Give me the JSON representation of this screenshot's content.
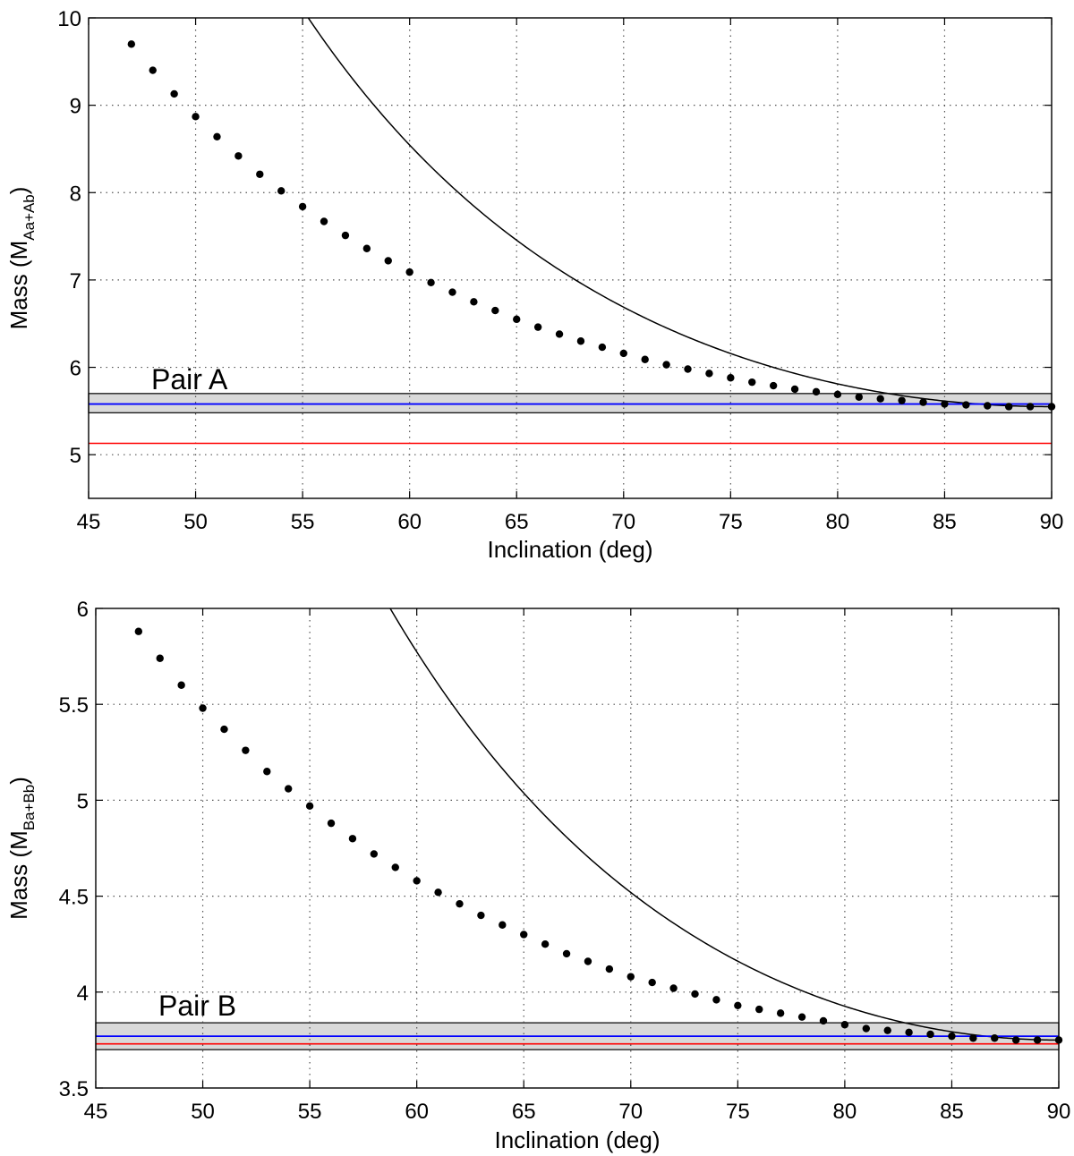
{
  "chart_data": [
    {
      "type": "line",
      "xlabel": "Inclination (deg)",
      "ylabel_prefix": "Mass (M",
      "ylabel_sub": "Aa+Ab",
      "ylabel_suffix": ")",
      "annotation": "Pair A",
      "xlim": [
        45,
        90
      ],
      "ylim": [
        4.5,
        10
      ],
      "xticks": [
        "45",
        "50",
        "55",
        "60",
        "65",
        "70",
        "75",
        "80",
        "85",
        "90"
      ],
      "yticks": [
        "5",
        "6",
        "7",
        "8",
        "9",
        "10"
      ],
      "ytick_values": [
        5,
        6,
        7,
        8,
        9,
        10
      ],
      "grid": true,
      "colors": {
        "curve": "#000000",
        "blue": "#0000ff",
        "red": "#ff0000",
        "band": "#d9d9d9"
      },
      "band": [
        5.48,
        5.7
      ],
      "blue_line": 5.58,
      "red_line": 5.13,
      "curve_model": {
        "a": 5.55,
        "exponent": 3
      },
      "x": [
        47,
        48,
        49,
        50,
        51,
        52,
        53,
        54,
        55,
        56,
        57,
        58,
        59,
        60,
        61,
        62,
        63,
        64,
        65,
        66,
        67,
        68,
        69,
        70,
        71,
        72,
        73,
        74,
        75,
        76,
        77,
        78,
        79,
        80,
        81,
        82,
        83,
        84,
        85,
        86,
        87,
        88,
        89,
        90
      ],
      "y": [
        9.7,
        9.4,
        9.13,
        8.87,
        8.64,
        8.42,
        8.21,
        8.02,
        7.84,
        7.67,
        7.51,
        7.36,
        7.22,
        7.09,
        6.97,
        6.86,
        6.75,
        6.65,
        6.55,
        6.46,
        6.38,
        6.3,
        6.23,
        6.16,
        6.09,
        6.03,
        5.98,
        5.93,
        5.88,
        5.83,
        5.79,
        5.75,
        5.72,
        5.69,
        5.66,
        5.64,
        5.62,
        5.6,
        5.58,
        5.57,
        5.56,
        5.55,
        5.55,
        5.55
      ]
    },
    {
      "type": "line",
      "xlabel": "Inclination (deg)",
      "ylabel_prefix": "Mass (M",
      "ylabel_sub": "Ba+Bb",
      "ylabel_suffix": ")",
      "annotation": "Pair B",
      "xlim": [
        45,
        90
      ],
      "ylim": [
        3.5,
        6
      ],
      "xticks": [
        "45",
        "50",
        "55",
        "60",
        "65",
        "70",
        "75",
        "80",
        "85",
        "90"
      ],
      "yticks": [
        "3.5",
        "4",
        "4.5",
        "5",
        "5.5",
        "6"
      ],
      "ytick_values": [
        3.5,
        4,
        4.5,
        5,
        5.5,
        6
      ],
      "grid": true,
      "colors": {
        "curve": "#000000",
        "blue": "#0000ff",
        "red": "#ff0000",
        "band": "#d9d9d9"
      },
      "band": [
        3.7,
        3.84
      ],
      "blue_line": 3.77,
      "red_line": 3.73,
      "curve_model": {
        "a": 3.75,
        "exponent": 3
      },
      "x": [
        47,
        48,
        49,
        50,
        51,
        52,
        53,
        54,
        55,
        56,
        57,
        58,
        59,
        60,
        61,
        62,
        63,
        64,
        65,
        66,
        67,
        68,
        69,
        70,
        71,
        72,
        73,
        74,
        75,
        76,
        77,
        78,
        79,
        80,
        81,
        82,
        83,
        84,
        85,
        86,
        87,
        88,
        89,
        90
      ],
      "y": [
        5.88,
        5.74,
        5.6,
        5.48,
        5.37,
        5.26,
        5.15,
        5.06,
        4.97,
        4.88,
        4.8,
        4.72,
        4.65,
        4.58,
        4.52,
        4.46,
        4.4,
        4.35,
        4.3,
        4.25,
        4.2,
        4.16,
        4.12,
        4.08,
        4.05,
        4.02,
        3.99,
        3.96,
        3.93,
        3.91,
        3.89,
        3.87,
        3.85,
        3.83,
        3.81,
        3.8,
        3.79,
        3.78,
        3.77,
        3.76,
        3.76,
        3.75,
        3.75,
        3.75
      ]
    }
  ]
}
